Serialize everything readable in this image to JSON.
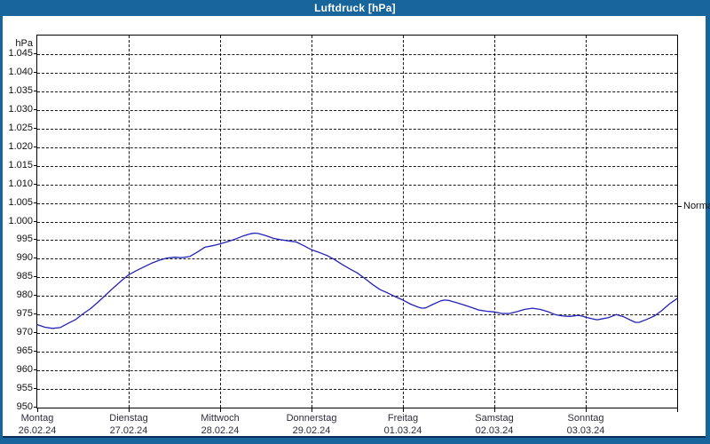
{
  "window": {
    "title": "Luftdruck [hPa]"
  },
  "colors": {
    "titlebar_bg": "#18659c",
    "panel_bg": "#ffffff",
    "frame": "#000000",
    "curve": "#2323b8",
    "axis_text": "#101010",
    "day_text": "#2e2e3e",
    "bottom_edge": "#0c2d5a"
  },
  "chart_data": {
    "type": "line",
    "title": "Luftdruck [hPa]",
    "unit_label": "hPa",
    "ylim": [
      950,
      1050
    ],
    "grid": "dashed",
    "legend_position": "none",
    "y_ticks": [
      {
        "label": "1.045",
        "value": 1045
      },
      {
        "label": "1.040",
        "value": 1040
      },
      {
        "label": "1.035",
        "value": 1035
      },
      {
        "label": "1.030",
        "value": 1030
      },
      {
        "label": "1.025",
        "value": 1025
      },
      {
        "label": "1.020",
        "value": 1020
      },
      {
        "label": "1.015",
        "value": 1015
      },
      {
        "label": "1.010",
        "value": 1010
      },
      {
        "label": "1.005",
        "value": 1005
      },
      {
        "label": "1.000",
        "value": 1000
      },
      {
        "label": "995",
        "value": 995
      },
      {
        "label": "990",
        "value": 990
      },
      {
        "label": "985",
        "value": 985
      },
      {
        "label": "980",
        "value": 980
      },
      {
        "label": "975",
        "value": 975
      },
      {
        "label": "970",
        "value": 970
      },
      {
        "label": "965",
        "value": 965
      },
      {
        "label": "960",
        "value": 960
      },
      {
        "label": "955",
        "value": 955
      },
      {
        "label": "950",
        "value": 950
      }
    ],
    "x_days": [
      {
        "weekday": "Montag",
        "date": "26.02.24"
      },
      {
        "weekday": "Dienstag",
        "date": "27.02.24"
      },
      {
        "weekday": "Mittwoch",
        "date": "28.02.24"
      },
      {
        "weekday": "Donnerstag",
        "date": "29.02.24"
      },
      {
        "weekday": "Freitag",
        "date": "01.03.24"
      },
      {
        "weekday": "Samstag",
        "date": "02.03.24"
      },
      {
        "weekday": "Sonntag",
        "date": "03.03.24"
      }
    ],
    "x_hours_range": [
      0,
      168
    ],
    "normal_marker": {
      "label": "Normal",
      "value_hpa": 1004
    },
    "series": [
      {
        "name": "Luftdruck",
        "color": "#2323b8",
        "points_hours_hpa": [
          [
            0,
            972.3
          ],
          [
            2,
            971.6
          ],
          [
            4,
            971.3
          ],
          [
            6,
            971.5
          ],
          [
            8,
            972.6
          ],
          [
            10,
            973.6
          ],
          [
            12,
            975.2
          ],
          [
            14,
            976.6
          ],
          [
            16,
            978.4
          ],
          [
            18,
            980.3
          ],
          [
            20,
            982.2
          ],
          [
            22,
            984.0
          ],
          [
            24,
            985.7
          ],
          [
            26,
            986.8
          ],
          [
            28,
            987.8
          ],
          [
            30,
            988.8
          ],
          [
            32,
            989.6
          ],
          [
            34,
            990.2
          ],
          [
            36,
            990.4
          ],
          [
            38,
            990.3
          ],
          [
            40,
            990.6
          ],
          [
            42,
            991.8
          ],
          [
            44,
            993.1
          ],
          [
            46,
            993.5
          ],
          [
            48,
            994.0
          ],
          [
            50,
            994.6
          ],
          [
            52,
            995.3
          ],
          [
            54,
            996.1
          ],
          [
            56,
            996.7
          ],
          [
            57,
            996.9
          ],
          [
            58,
            996.8
          ],
          [
            60,
            996.2
          ],
          [
            62,
            995.5
          ],
          [
            64,
            995.1
          ],
          [
            66,
            994.8
          ],
          [
            68,
            994.5
          ],
          [
            70,
            993.5
          ],
          [
            72,
            992.4
          ],
          [
            74,
            991.7
          ],
          [
            76,
            990.9
          ],
          [
            78,
            989.8
          ],
          [
            80,
            988.5
          ],
          [
            82,
            987.3
          ],
          [
            84,
            986.2
          ],
          [
            86,
            984.7
          ],
          [
            88,
            983.1
          ],
          [
            90,
            981.7
          ],
          [
            92,
            980.8
          ],
          [
            94,
            979.8
          ],
          [
            96,
            978.9
          ],
          [
            98,
            977.8
          ],
          [
            100,
            977.0
          ],
          [
            101,
            976.7
          ],
          [
            102,
            976.8
          ],
          [
            104,
            977.8
          ],
          [
            106,
            978.7
          ],
          [
            107,
            978.9
          ],
          [
            108,
            978.8
          ],
          [
            110,
            978.2
          ],
          [
            112,
            977.6
          ],
          [
            114,
            976.9
          ],
          [
            116,
            976.2
          ],
          [
            118,
            975.9
          ],
          [
            120,
            975.7
          ],
          [
            122,
            975.3
          ],
          [
            124,
            975.3
          ],
          [
            126,
            975.8
          ],
          [
            128,
            976.4
          ],
          [
            130,
            976.7
          ],
          [
            132,
            976.4
          ],
          [
            134,
            975.8
          ],
          [
            136,
            975.0
          ],
          [
            138,
            974.6
          ],
          [
            140,
            974.5
          ],
          [
            142,
            974.8
          ],
          [
            143,
            974.6
          ],
          [
            144,
            974.3
          ],
          [
            146,
            973.8
          ],
          [
            147,
            973.6
          ],
          [
            148,
            973.8
          ],
          [
            150,
            974.2
          ],
          [
            152,
            975.0
          ],
          [
            154,
            974.4
          ],
          [
            156,
            973.4
          ],
          [
            157,
            972.9
          ],
          [
            158,
            972.9
          ],
          [
            160,
            973.7
          ],
          [
            162,
            974.6
          ],
          [
            164,
            976.1
          ],
          [
            166,
            977.9
          ],
          [
            168,
            979.3
          ]
        ]
      }
    ]
  }
}
